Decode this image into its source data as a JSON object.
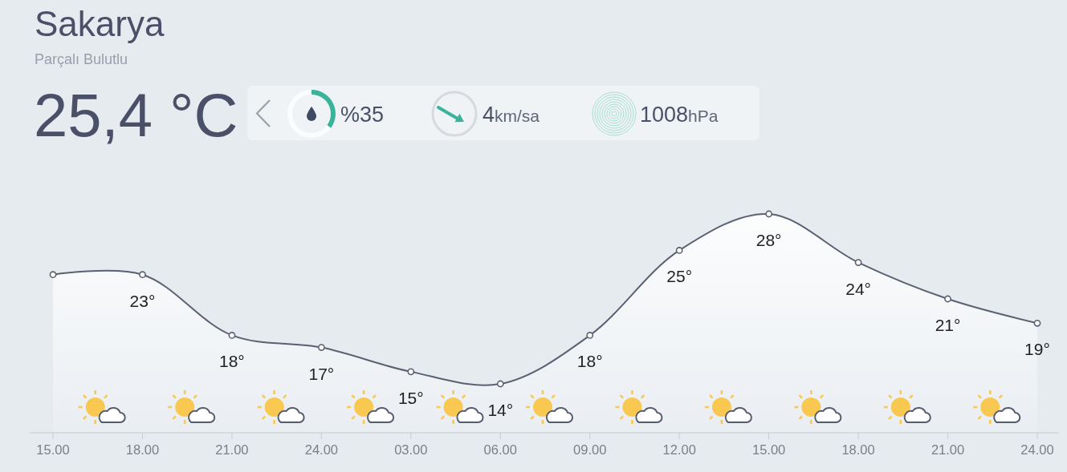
{
  "chart_data": {
    "type": "area",
    "title": "Sakarya",
    "subtitle": "Parçalı Bulutlu",
    "annotations": [
      "25,4 °C",
      "%35",
      "4km/sa",
      "1008hPa"
    ],
    "categories": [
      "15.00",
      "18.00",
      "21.00",
      "24.00",
      "03.00",
      "06.00",
      "09.00",
      "12.00",
      "15.00",
      "18.00",
      "21.00",
      "24.00"
    ],
    "series": [
      {
        "color": "#5b6172",
        "values": [
          23,
          23,
          18,
          17,
          15,
          14,
          18,
          25,
          28,
          24,
          21,
          19
        ],
        "value_labels": [
          null,
          "23°",
          "18°",
          "17°",
          "15°",
          "14°",
          "18°",
          "25°",
          "28°",
          "24°",
          "21°",
          "19°"
        ]
      }
    ],
    "marker": "circle"
  }
}
